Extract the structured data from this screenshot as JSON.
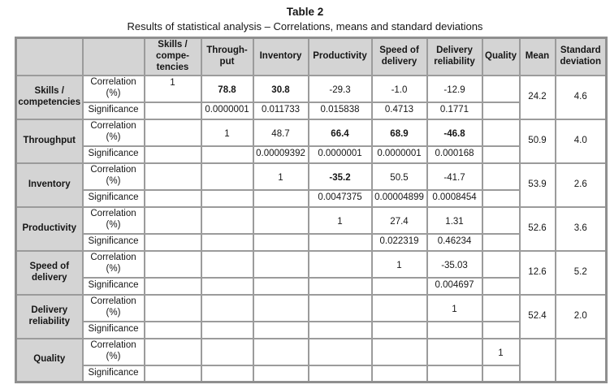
{
  "doc": {
    "title": "Table 2",
    "subtitle": "Results of statistical analysis – Correlations, means and standard deviations"
  },
  "colors": {
    "shaded_cell_background": "#d4d4d4",
    "grid_line": "#9b9b9b",
    "text": "#161616"
  },
  "table": {
    "column_headers": [
      "",
      "",
      "Skills /\ncompe-\ntencies",
      "Through-\nput",
      "Inventory",
      "Productivity",
      "Speed of\ndelivery",
      "Delivery\nreliability",
      "Quality",
      "Mean",
      "Standard\ndeviation"
    ],
    "measure_labels": {
      "correlation": "Correlation\n(%)",
      "significance": "Significance"
    },
    "groups": [
      {
        "label": "Skills /\ncompetencies",
        "correlation": [
          {
            "v": "1",
            "top": true
          },
          {
            "v": "78.8",
            "b": true
          },
          {
            "v": "30.8",
            "b": true
          },
          {
            "v": "-29.3"
          },
          {
            "v": "-1.0"
          },
          {
            "v": "-12.9"
          },
          {
            "v": ""
          }
        ],
        "significance": [
          "",
          "0.0000001",
          "0.011733",
          "0.015838",
          "0.4713",
          "0.1771",
          ""
        ],
        "mean": "24.2",
        "std_dev": "4.6"
      },
      {
        "label": "Throughput",
        "correlation": [
          {
            "v": ""
          },
          {
            "v": "1"
          },
          {
            "v": "48.7"
          },
          {
            "v": "66.4",
            "b": true
          },
          {
            "v": "68.9",
            "b": true
          },
          {
            "v": "-46.8",
            "b": true
          },
          {
            "v": ""
          }
        ],
        "significance": [
          "",
          "",
          "0.00009392",
          "0.0000001",
          "0.0000001",
          "0.000168",
          ""
        ],
        "mean": "50.9",
        "std_dev": "4.0"
      },
      {
        "label": "Inventory",
        "correlation": [
          {
            "v": ""
          },
          {
            "v": ""
          },
          {
            "v": "1"
          },
          {
            "v": "-35.2",
            "b": true
          },
          {
            "v": "50.5"
          },
          {
            "v": "-41.7"
          },
          {
            "v": ""
          }
        ],
        "significance": [
          "",
          "",
          "",
          "0.0047375",
          "0.00004899",
          "0.0008454",
          ""
        ],
        "mean": "53.9",
        "std_dev": "2.6"
      },
      {
        "label": "Productivity",
        "correlation": [
          {
            "v": ""
          },
          {
            "v": ""
          },
          {
            "v": ""
          },
          {
            "v": "1"
          },
          {
            "v": "27.4"
          },
          {
            "v": "1.31"
          },
          {
            "v": ""
          }
        ],
        "significance": [
          "",
          "",
          "",
          "",
          "0.022319",
          "0.46234",
          ""
        ],
        "mean": "52.6",
        "std_dev": "3.6"
      },
      {
        "label": "Speed of\ndelivery",
        "correlation": [
          {
            "v": ""
          },
          {
            "v": ""
          },
          {
            "v": ""
          },
          {
            "v": ""
          },
          {
            "v": "1"
          },
          {
            "v": "-35.03"
          },
          {
            "v": ""
          }
        ],
        "significance": [
          "",
          "",
          "",
          "",
          "",
          "0.004697",
          ""
        ],
        "mean": "12.6",
        "std_dev": "5.2"
      },
      {
        "label": "Delivery\nreliability",
        "correlation": [
          {
            "v": ""
          },
          {
            "v": ""
          },
          {
            "v": ""
          },
          {
            "v": ""
          },
          {
            "v": ""
          },
          {
            "v": "1"
          },
          {
            "v": ""
          }
        ],
        "significance": [
          "",
          "",
          "",
          "",
          "",
          "",
          ""
        ],
        "mean": "52.4",
        "std_dev": "2.0"
      },
      {
        "label": "Quality",
        "correlation": [
          {
            "v": ""
          },
          {
            "v": ""
          },
          {
            "v": ""
          },
          {
            "v": ""
          },
          {
            "v": ""
          },
          {
            "v": ""
          },
          {
            "v": "1"
          }
        ],
        "significance": [
          "",
          "",
          "",
          "",
          "",
          "",
          ""
        ],
        "mean": "",
        "std_dev": ""
      }
    ]
  }
}
